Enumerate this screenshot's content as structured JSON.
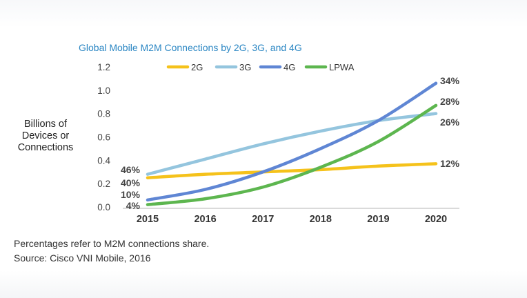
{
  "notes": {
    "line1": "Percentages refer to M2M connections share.",
    "line2": "Source: Cisco VNI Mobile, 2016"
  },
  "chart_data": {
    "type": "line",
    "title": "Global Mobile M2M Connections by 2G, 3G, and 4G",
    "xlabel": "",
    "ylabel": "Billions of Devices or Connections",
    "x": [
      "2015",
      "2016",
      "2017",
      "2018",
      "2019",
      "2020"
    ],
    "ylim": [
      0,
      1.2
    ],
    "yticks": [
      "0.0",
      "0.2",
      "0.4",
      "0.6",
      "0.8",
      "1.0",
      "1.2"
    ],
    "grid": false,
    "legend_position": "top",
    "series": [
      {
        "name": "2G",
        "color": "#f5c21b",
        "values": [
          0.25,
          0.28,
          0.3,
          0.32,
          0.35,
          0.37
        ]
      },
      {
        "name": "3G",
        "color": "#94c5de",
        "values": [
          0.28,
          0.41,
          0.54,
          0.65,
          0.74,
          0.8
        ]
      },
      {
        "name": "4G",
        "color": "#5f86d4",
        "values": [
          0.06,
          0.15,
          0.3,
          0.5,
          0.74,
          1.06
        ]
      },
      {
        "name": "LPWA",
        "color": "#5db64f",
        "values": [
          0.02,
          0.07,
          0.17,
          0.34,
          0.56,
          0.87
        ]
      }
    ],
    "annotations_start": [
      {
        "text": "46%",
        "series": "3G"
      },
      {
        "text": "40%",
        "series": "2G"
      },
      {
        "text": "10%",
        "series": "4G"
      },
      {
        "text": "4%",
        "series": "LPWA"
      }
    ],
    "annotations_end": [
      {
        "text": "34%",
        "series": "4G"
      },
      {
        "text": "28%",
        "series": "LPWA"
      },
      {
        "text": "26%",
        "series": "3G"
      },
      {
        "text": "12%",
        "series": "2G"
      }
    ]
  }
}
